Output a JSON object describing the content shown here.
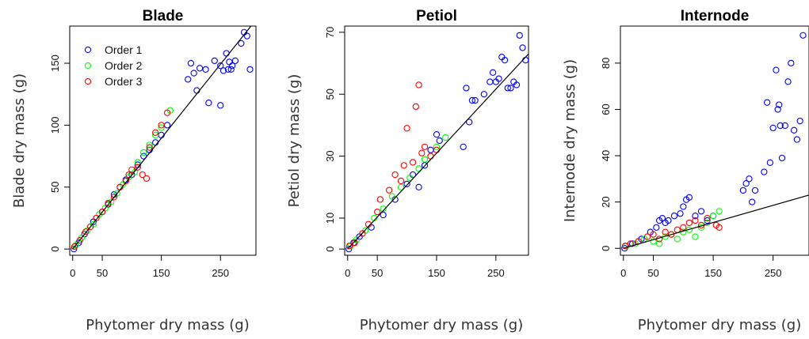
{
  "series_colors": {
    "Order 1": "#0000ff",
    "Order 2": "#00ff00",
    "Order 3": "#ff0000"
  },
  "chart_data": [
    {
      "type": "scatter",
      "title": "Blade",
      "xlabel": "Phytomer dry mass (g)",
      "ylabel": "Blade dry mass (g)",
      "xlim": [
        -5,
        310
      ],
      "ylim": [
        -5,
        180
      ],
      "xticks": [
        0,
        50,
        150,
        250
      ],
      "yticks": [
        0,
        50,
        100,
        150
      ],
      "legend": {
        "position": "top-left",
        "entries": [
          "Order 1",
          "Order 2",
          "Order 3"
        ]
      },
      "fit_line": {
        "x": [
          0,
          310
        ],
        "y": [
          0,
          185
        ]
      },
      "series": [
        {
          "name": "Order 1",
          "points": [
            [
              2,
              0
            ],
            [
              10,
              5
            ],
            [
              20,
              12
            ],
            [
              35,
              22
            ],
            [
              50,
              30
            ],
            [
              60,
              36
            ],
            [
              70,
              44
            ],
            [
              80,
              50
            ],
            [
              90,
              56
            ],
            [
              100,
              60
            ],
            [
              110,
              68
            ],
            [
              120,
              75
            ],
            [
              130,
              80
            ],
            [
              140,
              86
            ],
            [
              150,
              92
            ],
            [
              160,
              100
            ],
            [
              195,
              137
            ],
            [
              200,
              150
            ],
            [
              205,
              142
            ],
            [
              210,
              128
            ],
            [
              215,
              146
            ],
            [
              225,
              145
            ],
            [
              230,
              118
            ],
            [
              240,
              152
            ],
            [
              250,
              116
            ],
            [
              250,
              148
            ],
            [
              255,
              144
            ],
            [
              260,
              158
            ],
            [
              263,
              145
            ],
            [
              265,
              151
            ],
            [
              268,
              145
            ],
            [
              270,
              148
            ],
            [
              275,
              152
            ],
            [
              285,
              166
            ],
            [
              290,
              175
            ],
            [
              295,
              172
            ],
            [
              300,
              145
            ]
          ]
        },
        {
          "name": "Order 2",
          "points": [
            [
              5,
              3
            ],
            [
              15,
              9
            ],
            [
              25,
              15
            ],
            [
              35,
              20
            ],
            [
              45,
              28
            ],
            [
              55,
              33
            ],
            [
              65,
              38
            ],
            [
              75,
              45
            ],
            [
              85,
              52
            ],
            [
              95,
              58
            ],
            [
              105,
              62
            ],
            [
              110,
              70
            ],
            [
              120,
              78
            ],
            [
              130,
              84
            ],
            [
              140,
              92
            ],
            [
              150,
              98
            ],
            [
              165,
              112
            ]
          ]
        },
        {
          "name": "Order 3",
          "points": [
            [
              3,
              2
            ],
            [
              12,
              7
            ],
            [
              22,
              14
            ],
            [
              30,
              18
            ],
            [
              40,
              25
            ],
            [
              50,
              30
            ],
            [
              60,
              37
            ],
            [
              70,
              42
            ],
            [
              80,
              50
            ],
            [
              90,
              55
            ],
            [
              95,
              60
            ],
            [
              100,
              64
            ],
            [
              110,
              66
            ],
            [
              118,
              60
            ],
            [
              125,
              57
            ],
            [
              130,
              82
            ],
            [
              140,
              94
            ],
            [
              150,
              100
            ],
            [
              160,
              110
            ]
          ]
        }
      ]
    },
    {
      "type": "scatter",
      "title": "Petiol",
      "xlabel": "Phytomer dry mass (g)",
      "ylabel": "Petiol dry mass (g)",
      "xlim": [
        -5,
        305
      ],
      "ylim": [
        -2,
        72
      ],
      "xticks": [
        0,
        50,
        150,
        250
      ],
      "yticks": [
        0,
        10,
        30,
        50,
        70
      ],
      "fit_line": {
        "x": [
          0,
          305
        ],
        "y": [
          0,
          63
        ]
      },
      "series": [
        {
          "name": "Order 1",
          "points": [
            [
              2,
              0
            ],
            [
              10,
              2
            ],
            [
              20,
              4
            ],
            [
              40,
              7
            ],
            [
              60,
              11
            ],
            [
              80,
              16
            ],
            [
              100,
              21
            ],
            [
              110,
              24
            ],
            [
              120,
              20
            ],
            [
              130,
              27
            ],
            [
              140,
              32
            ],
            [
              150,
              37
            ],
            [
              155,
              35
            ],
            [
              195,
              33
            ],
            [
              200,
              52
            ],
            [
              205,
              41
            ],
            [
              210,
              48
            ],
            [
              215,
              48
            ],
            [
              230,
              50
            ],
            [
              240,
              54
            ],
            [
              245,
              57
            ],
            [
              250,
              54
            ],
            [
              255,
              55
            ],
            [
              260,
              62
            ],
            [
              265,
              61
            ],
            [
              270,
              52
            ],
            [
              275,
              52
            ],
            [
              280,
              54
            ],
            [
              285,
              53
            ],
            [
              290,
              69
            ],
            [
              295,
              65
            ],
            [
              300,
              61
            ]
          ]
        },
        {
          "name": "Order 2",
          "points": [
            [
              5,
              1
            ],
            [
              15,
              3
            ],
            [
              30,
              6
            ],
            [
              45,
              10
            ],
            [
              60,
              13
            ],
            [
              75,
              17
            ],
            [
              90,
              20
            ],
            [
              105,
              23
            ],
            [
              120,
              26
            ],
            [
              130,
              29
            ],
            [
              140,
              30
            ],
            [
              150,
              33
            ],
            [
              165,
              36
            ]
          ]
        },
        {
          "name": "Order 3",
          "points": [
            [
              3,
              1
            ],
            [
              12,
              2
            ],
            [
              25,
              5
            ],
            [
              35,
              8
            ],
            [
              50,
              12
            ],
            [
              55,
              16
            ],
            [
              70,
              19
            ],
            [
              80,
              24
            ],
            [
              90,
              22
            ],
            [
              95,
              27
            ],
            [
              100,
              39
            ],
            [
              110,
              28
            ],
            [
              115,
              46
            ],
            [
              120,
              53
            ],
            [
              125,
              31
            ],
            [
              130,
              33
            ],
            [
              140,
              30
            ],
            [
              150,
              32
            ]
          ]
        }
      ]
    },
    {
      "type": "scatter",
      "title": "Internode",
      "xlabel": "Phytomer dry mass (g)",
      "ylabel": "Internode dry mass (g)",
      "xlim": [
        -5,
        310
      ],
      "ylim": [
        -3,
        96
      ],
      "xticks": [
        0,
        50,
        150,
        250
      ],
      "yticks": [
        0,
        20,
        40,
        60,
        80
      ],
      "fit_line": {
        "x": [
          0,
          310
        ],
        "y": [
          0,
          23
        ]
      },
      "series": [
        {
          "name": "Order 1",
          "points": [
            [
              2,
              0
            ],
            [
              15,
              2
            ],
            [
              30,
              4
            ],
            [
              45,
              7
            ],
            [
              55,
              9
            ],
            [
              60,
              12
            ],
            [
              65,
              13
            ],
            [
              70,
              11
            ],
            [
              75,
              12
            ],
            [
              85,
              14
            ],
            [
              95,
              15
            ],
            [
              100,
              18
            ],
            [
              105,
              21
            ],
            [
              110,
              22
            ],
            [
              120,
              14
            ],
            [
              130,
              16
            ],
            [
              140,
              12
            ],
            [
              150,
              14
            ],
            [
              200,
              25
            ],
            [
              205,
              28
            ],
            [
              210,
              30
            ],
            [
              215,
              20
            ],
            [
              220,
              25
            ],
            [
              235,
              33
            ],
            [
              240,
              63
            ],
            [
              245,
              37
            ],
            [
              250,
              52
            ],
            [
              255,
              77
            ],
            [
              258,
              60
            ],
            [
              260,
              62
            ],
            [
              262,
              53
            ],
            [
              265,
              39
            ],
            [
              270,
              53
            ],
            [
              275,
              72
            ],
            [
              280,
              80
            ],
            [
              285,
              51
            ],
            [
              290,
              47
            ],
            [
              295,
              55
            ],
            [
              300,
              92
            ]
          ]
        },
        {
          "name": "Order 2",
          "points": [
            [
              5,
              1
            ],
            [
              20,
              2
            ],
            [
              35,
              4
            ],
            [
              50,
              3
            ],
            [
              60,
              2
            ],
            [
              70,
              5
            ],
            [
              80,
              6
            ],
            [
              90,
              4
            ],
            [
              100,
              7
            ],
            [
              110,
              8
            ],
            [
              120,
              5
            ],
            [
              130,
              9
            ],
            [
              140,
              11
            ],
            [
              150,
              14
            ],
            [
              160,
              16
            ]
          ]
        },
        {
          "name": "Order 3",
          "points": [
            [
              3,
              1
            ],
            [
              12,
              2
            ],
            [
              25,
              3
            ],
            [
              40,
              5
            ],
            [
              50,
              6
            ],
            [
              60,
              4
            ],
            [
              70,
              7
            ],
            [
              80,
              6
            ],
            [
              90,
              8
            ],
            [
              100,
              9
            ],
            [
              110,
              11
            ],
            [
              120,
              12
            ],
            [
              130,
              10
            ],
            [
              140,
              13
            ],
            [
              155,
              10
            ],
            [
              160,
              9
            ]
          ]
        }
      ]
    }
  ]
}
